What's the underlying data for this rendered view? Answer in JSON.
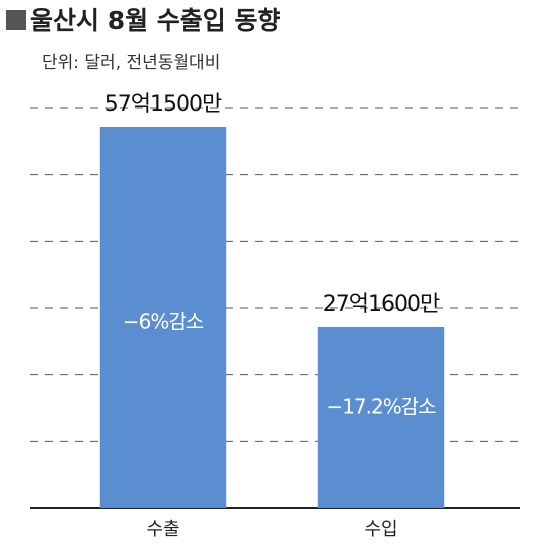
{
  "chart_data": {
    "type": "bar",
    "title": "울산시 8월 수출입 동향",
    "subtitle": "단위: 달러, 전년동월대비",
    "categories": [
      "수출",
      "수입"
    ],
    "values": [
      5715000000,
      2716000000
    ],
    "value_labels": [
      "57억1500만",
      "27억1600만"
    ],
    "annotations": [
      "−6%감소",
      "−17.2%감소"
    ],
    "color": "#5b8ed0",
    "ylim": [
      0,
      6000000000
    ],
    "yticks": [
      0,
      1000000000,
      2000000000,
      3000000000,
      4000000000,
      5000000000,
      6000000000
    ],
    "grid": true
  }
}
